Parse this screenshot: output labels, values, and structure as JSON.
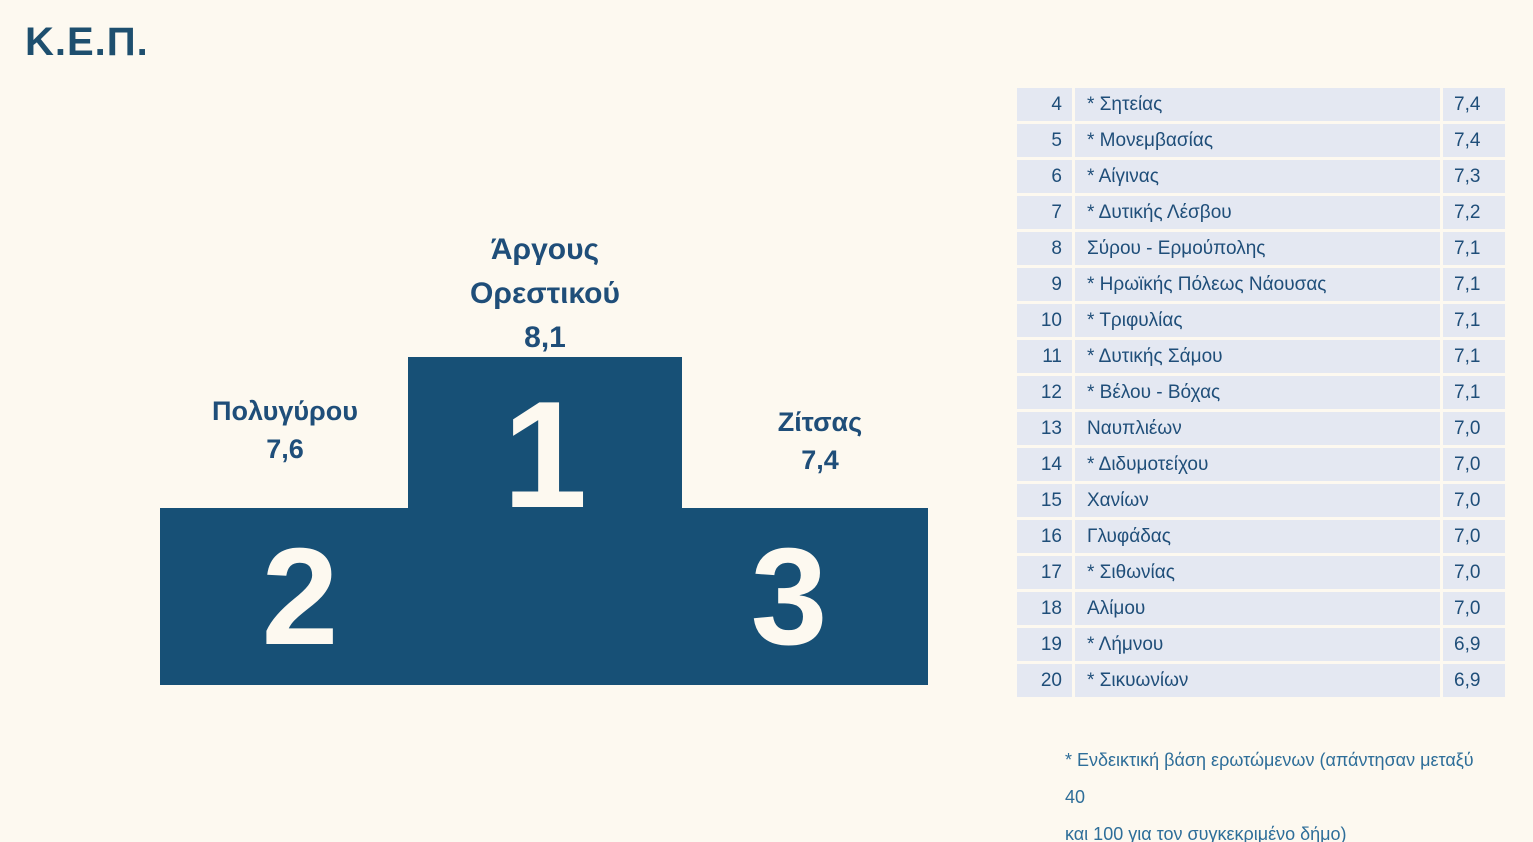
{
  "title": "Κ.Ε.Π.",
  "colors": {
    "background": "#FDF9F0",
    "podium_fill": "#175076",
    "podium_numeral": "#FDF9F0",
    "text_blue": "#1F4E79",
    "table_row_bg": "#E4E8F2",
    "footnote_blue": "#2E6E99"
  },
  "podium": {
    "first": {
      "rank": "1",
      "name": "Άργους Ορεστικού",
      "value": "8,1"
    },
    "second": {
      "rank": "2",
      "name": "Πολυγύρου",
      "value": "7,6"
    },
    "third": {
      "rank": "3",
      "name": "Ζίτσας",
      "value": "7,4"
    }
  },
  "table": {
    "rows": [
      {
        "rank": "4",
        "name": "* Σητείας",
        "value": "7,4"
      },
      {
        "rank": "5",
        "name": "* Μονεμβασίας",
        "value": "7,4"
      },
      {
        "rank": "6",
        "name": "* Αίγινας",
        "value": "7,3"
      },
      {
        "rank": "7",
        "name": "* Δυτικής Λέσβου",
        "value": "7,2"
      },
      {
        "rank": "8",
        "name": "Σύρου - Ερμούπολης",
        "value": "7,1"
      },
      {
        "rank": "9",
        "name": "* Ηρωϊκής Πόλεως Νάουσας",
        "value": "7,1"
      },
      {
        "rank": "10",
        "name": "* Τριφυλίας",
        "value": "7,1"
      },
      {
        "rank": "11",
        "name": "* Δυτικής Σάμου",
        "value": "7,1"
      },
      {
        "rank": "12",
        "name": "* Βέλου - Βόχας",
        "value": "7,1"
      },
      {
        "rank": "13",
        "name": "Ναυπλιέων",
        "value": "7,0"
      },
      {
        "rank": "14",
        "name": "* Διδυμοτείχου",
        "value": "7,0"
      },
      {
        "rank": "15",
        "name": "Χανίων",
        "value": "7,0"
      },
      {
        "rank": "16",
        "name": "Γλυφάδας",
        "value": "7,0"
      },
      {
        "rank": "17",
        "name": "* Σιθωνίας",
        "value": "7,0"
      },
      {
        "rank": "18",
        "name": "Αλίμου",
        "value": "7,0"
      },
      {
        "rank": "19",
        "name": "* Λήμνου",
        "value": "6,9"
      },
      {
        "rank": "20",
        "name": "* Σικυωνίων",
        "value": "6,9"
      }
    ]
  },
  "footnote": {
    "line1": "* Ενδεικτική βάση ερωτώμενων (απάντησαν μεταξύ 40",
    "line2": "και 100 για τον συγκεκριμένο δήμο)"
  },
  "chart_data": {
    "type": "table",
    "title": "Κ.Ε.Π.",
    "description": "Podium with top-3 municipalities and ranking table of ranks 4-20 (score out of 10, comma decimal)",
    "ranking": [
      {
        "rank": 1,
        "name": "Άργους Ορεστικού",
        "value": 8.1,
        "asterisk": false
      },
      {
        "rank": 2,
        "name": "Πολυγύρου",
        "value": 7.6,
        "asterisk": false
      },
      {
        "rank": 3,
        "name": "Ζίτσας",
        "value": 7.4,
        "asterisk": false
      },
      {
        "rank": 4,
        "name": "Σητείας",
        "value": 7.4,
        "asterisk": true
      },
      {
        "rank": 5,
        "name": "Μονεμβασίας",
        "value": 7.4,
        "asterisk": true
      },
      {
        "rank": 6,
        "name": "Αίγινας",
        "value": 7.3,
        "asterisk": true
      },
      {
        "rank": 7,
        "name": "Δυτικής Λέσβου",
        "value": 7.2,
        "asterisk": true
      },
      {
        "rank": 8,
        "name": "Σύρου - Ερμούπολης",
        "value": 7.1,
        "asterisk": false
      },
      {
        "rank": 9,
        "name": "Ηρωϊκής Πόλεως Νάουσας",
        "value": 7.1,
        "asterisk": true
      },
      {
        "rank": 10,
        "name": "Τριφυλίας",
        "value": 7.1,
        "asterisk": true
      },
      {
        "rank": 11,
        "name": "Δυτικής Σάμου",
        "value": 7.1,
        "asterisk": true
      },
      {
        "rank": 12,
        "name": "Βέλου - Βόχας",
        "value": 7.1,
        "asterisk": true
      },
      {
        "rank": 13,
        "name": "Ναυπλιέων",
        "value": 7.0,
        "asterisk": false
      },
      {
        "rank": 14,
        "name": "Διδυμοτείχου",
        "value": 7.0,
        "asterisk": true
      },
      {
        "rank": 15,
        "name": "Χανίων",
        "value": 7.0,
        "asterisk": false
      },
      {
        "rank": 16,
        "name": "Γλυφάδας",
        "value": 7.0,
        "asterisk": false
      },
      {
        "rank": 17,
        "name": "Σιθωνίας",
        "value": 7.0,
        "asterisk": true
      },
      {
        "rank": 18,
        "name": "Αλίμου",
        "value": 7.0,
        "asterisk": false
      },
      {
        "rank": 19,
        "name": "Λήμνου",
        "value": 6.9,
        "asterisk": true
      },
      {
        "rank": 20,
        "name": "Σικυωνίων",
        "value": 6.9,
        "asterisk": true
      }
    ],
    "footnote": "* Ενδεικτική βάση ερωτώμενων (απάντησαν μεταξύ 40 και 100 για τον συγκεκριμένο δήμο)"
  }
}
